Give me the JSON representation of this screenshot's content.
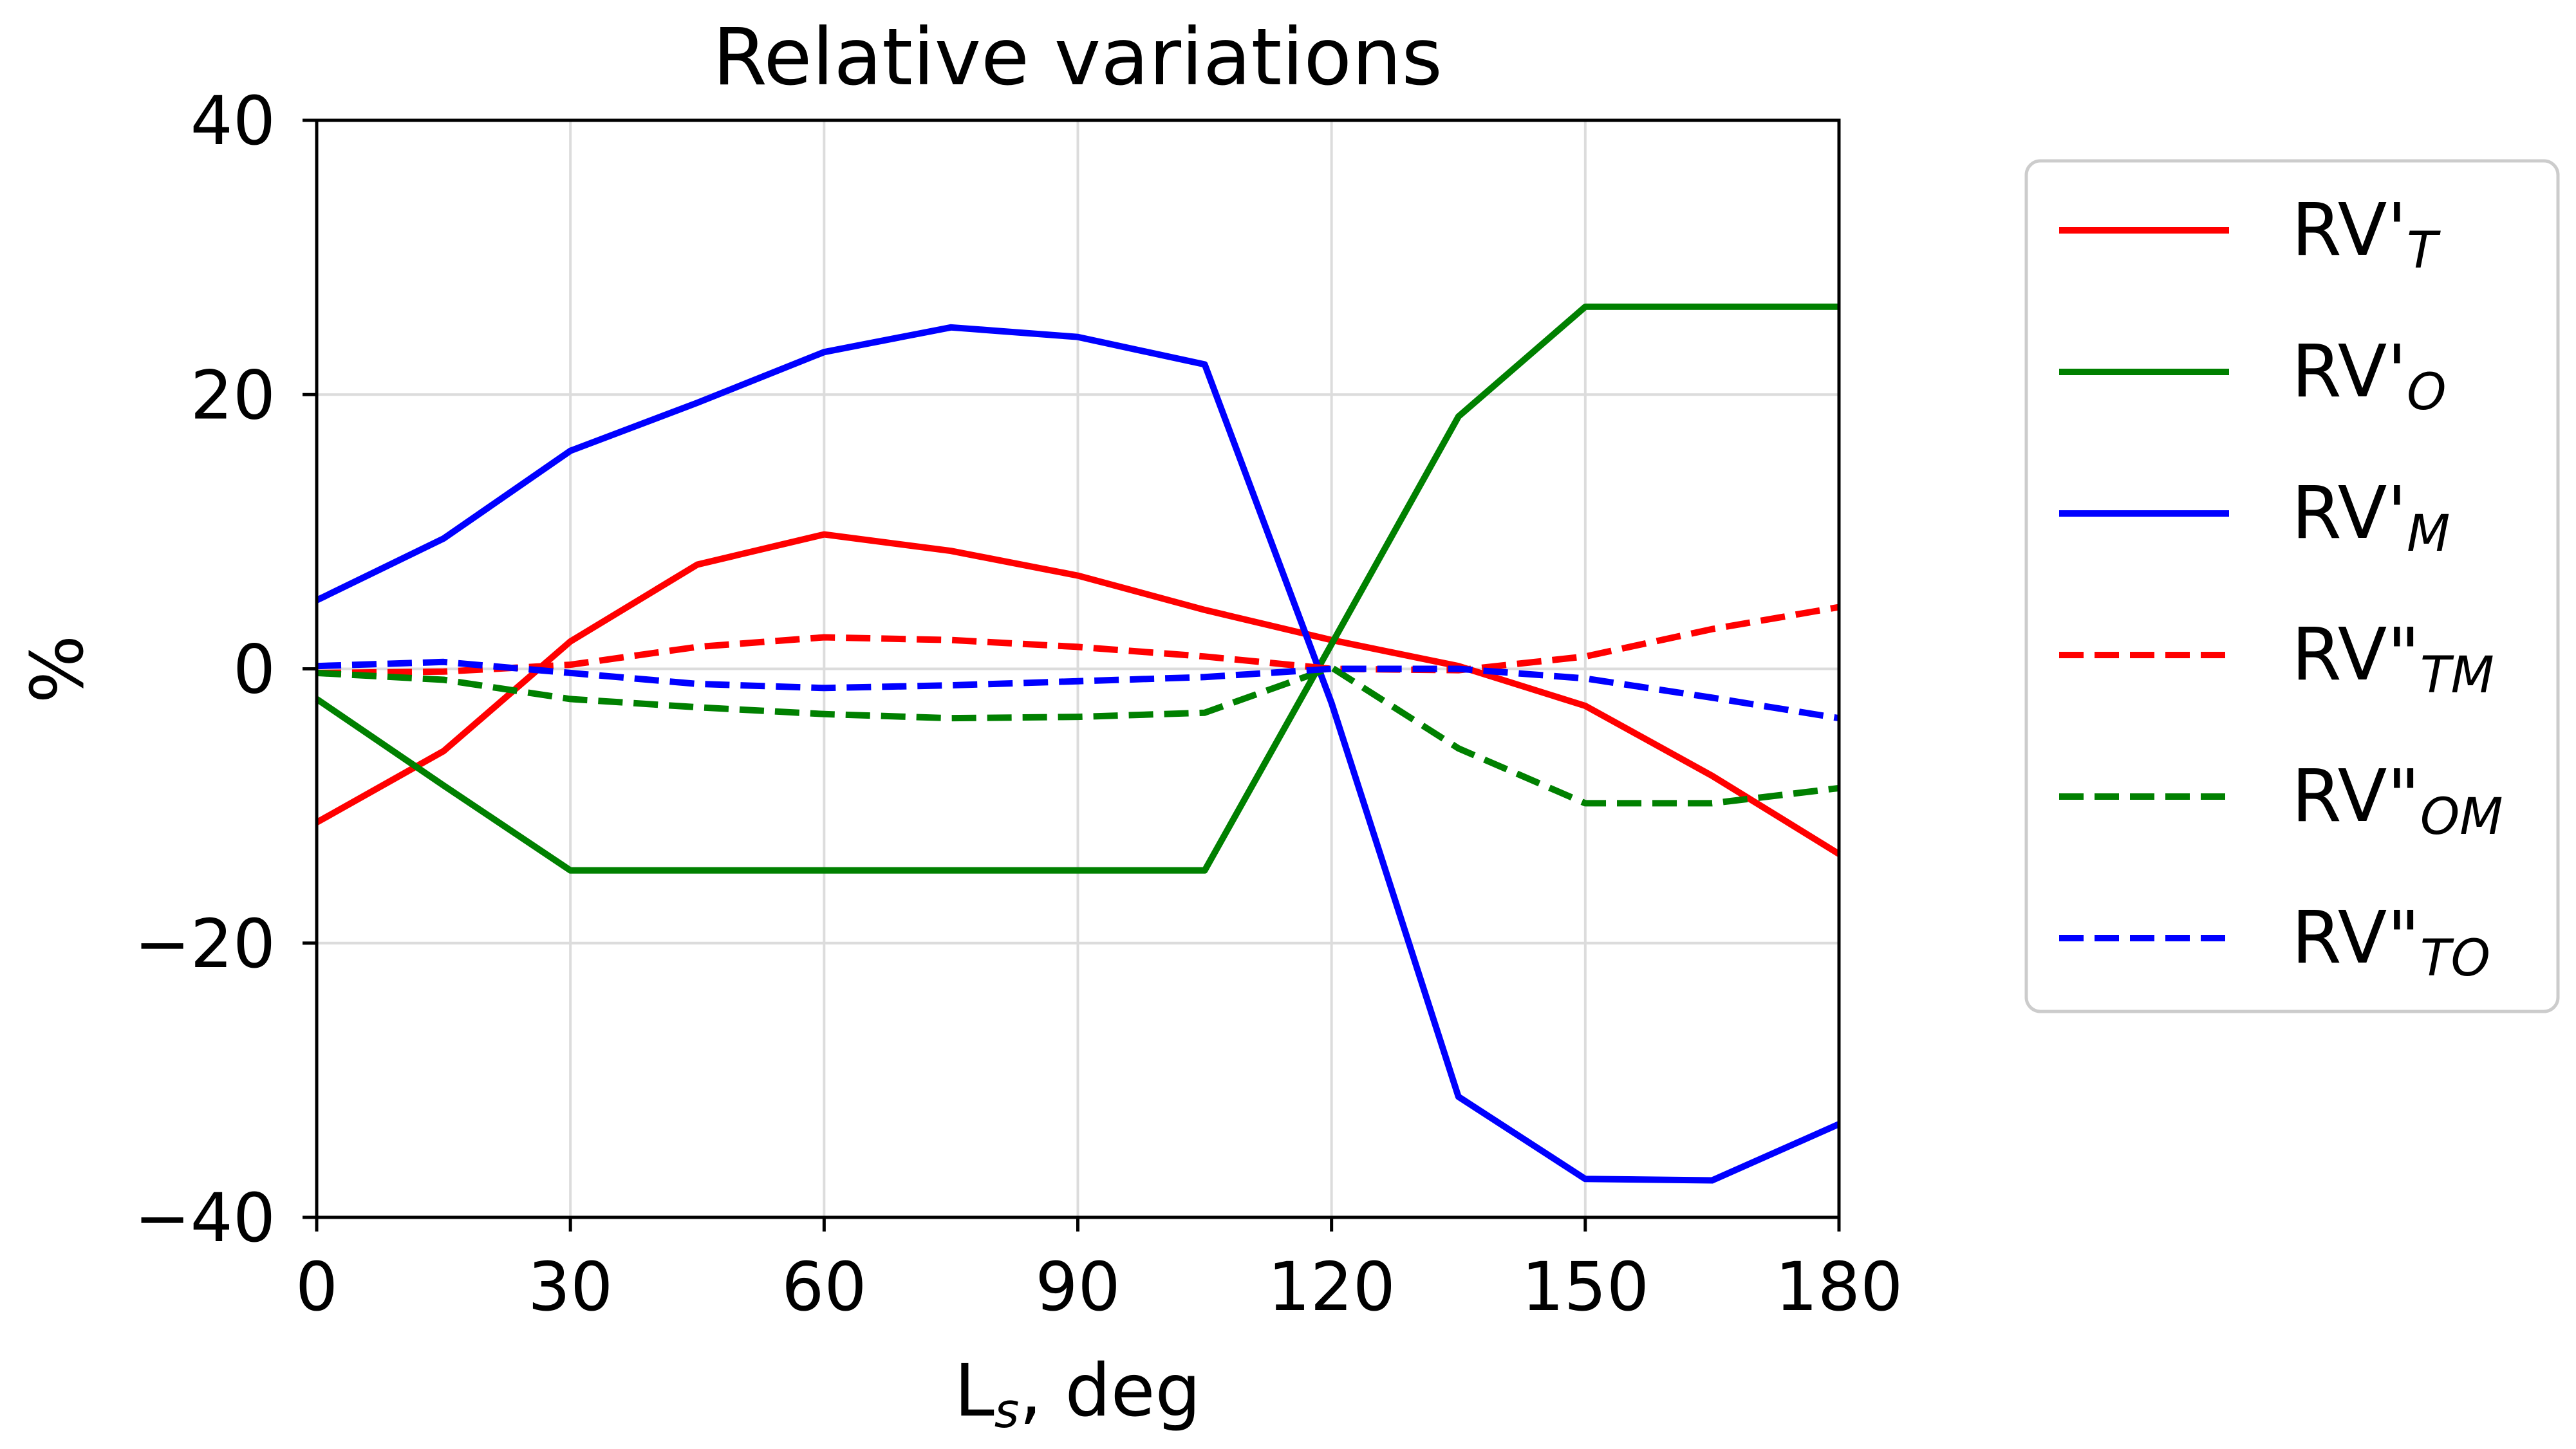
{
  "chart_data": {
    "type": "line",
    "title": "Relative variations",
    "xlabel_main": "L",
    "xlabel_sub": "s",
    "xlabel_suffix": ", deg",
    "ylabel": "%",
    "xlim": [
      0,
      180
    ],
    "ylim": [
      -40,
      40
    ],
    "xticks": [
      0,
      30,
      60,
      90,
      120,
      150,
      180
    ],
    "yticks": [
      -40,
      -20,
      0,
      20,
      40
    ],
    "ytick_labels": [
      "−40",
      "−20",
      "0",
      "20",
      "40"
    ],
    "grid": true,
    "legend_position": "outside-right",
    "x": [
      0,
      15,
      30,
      45,
      60,
      75,
      90,
      105,
      120,
      135,
      150,
      165,
      180
    ],
    "series": [
      {
        "name": "RV'",
        "sub": "T",
        "color": "#ff0000",
        "style": "solid",
        "values": [
          -11.2,
          -6.0,
          2.0,
          7.6,
          9.8,
          8.6,
          6.8,
          4.3,
          2.1,
          0.2,
          -2.7,
          -7.8,
          -13.5
        ]
      },
      {
        "name": "RV'",
        "sub": "O",
        "color": "#008000",
        "style": "solid",
        "values": [
          -2.2,
          -8.5,
          -14.7,
          -14.7,
          -14.7,
          -14.7,
          -14.7,
          -14.7,
          1.8,
          18.4,
          26.4,
          26.4,
          26.4
        ]
      },
      {
        "name": "RV'",
        "sub": "M",
        "color": "#0000ff",
        "style": "solid",
        "values": [
          5.0,
          9.5,
          15.9,
          19.4,
          23.1,
          24.9,
          24.2,
          22.2,
          -2.5,
          -31.2,
          -37.2,
          -37.3,
          -33.2
        ]
      },
      {
        "name": "RV\"",
        "sub": "TM",
        "color": "#ff0000",
        "style": "dashed",
        "values": [
          -0.3,
          -0.2,
          0.3,
          1.6,
          2.3,
          2.1,
          1.6,
          0.9,
          0.0,
          -0.1,
          0.9,
          2.9,
          4.5
        ]
      },
      {
        "name": "RV\"",
        "sub": "OM",
        "color": "#008000",
        "style": "dashed",
        "values": [
          -0.3,
          -0.8,
          -2.2,
          -2.8,
          -3.3,
          -3.6,
          -3.5,
          -3.2,
          0.1,
          -5.8,
          -9.8,
          -9.8,
          -8.7
        ]
      },
      {
        "name": "RV\"",
        "sub": "TO",
        "color": "#0000ff",
        "style": "dashed",
        "values": [
          0.2,
          0.5,
          -0.3,
          -1.1,
          -1.4,
          -1.2,
          -0.9,
          -0.6,
          0.0,
          0.0,
          -0.7,
          -2.1,
          -3.6
        ]
      }
    ]
  }
}
